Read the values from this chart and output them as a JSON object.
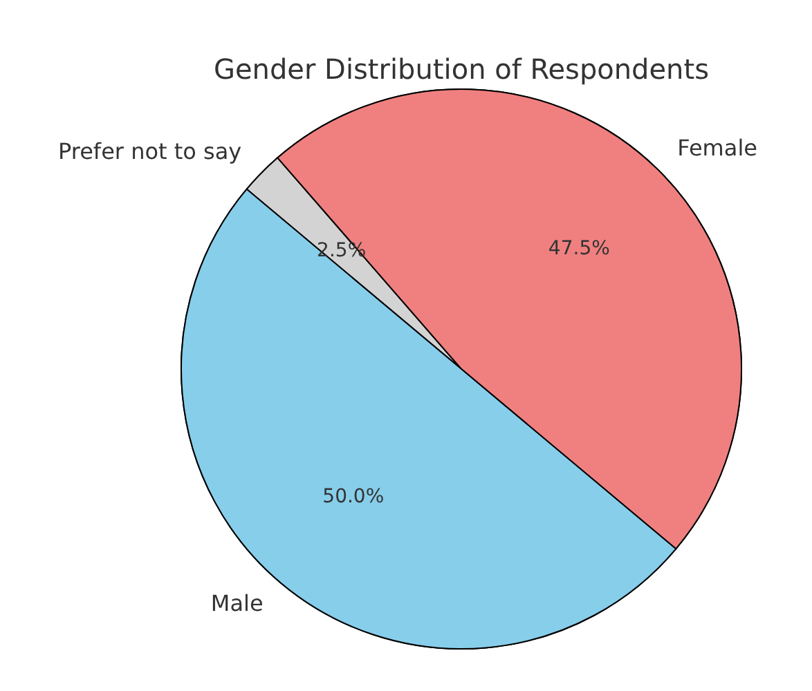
{
  "chart_data": {
    "type": "pie",
    "title": "Gender Distribution of Respondents",
    "categories": [
      "Prefer not to say",
      "Female",
      "Male"
    ],
    "values": [
      2.5,
      47.5,
      50.0
    ],
    "colors": [
      "#d3d3d3",
      "#f08080",
      "#87ceeb"
    ],
    "value_labels": [
      "2.5%",
      "47.5%",
      "50.0%"
    ],
    "legend": false
  }
}
